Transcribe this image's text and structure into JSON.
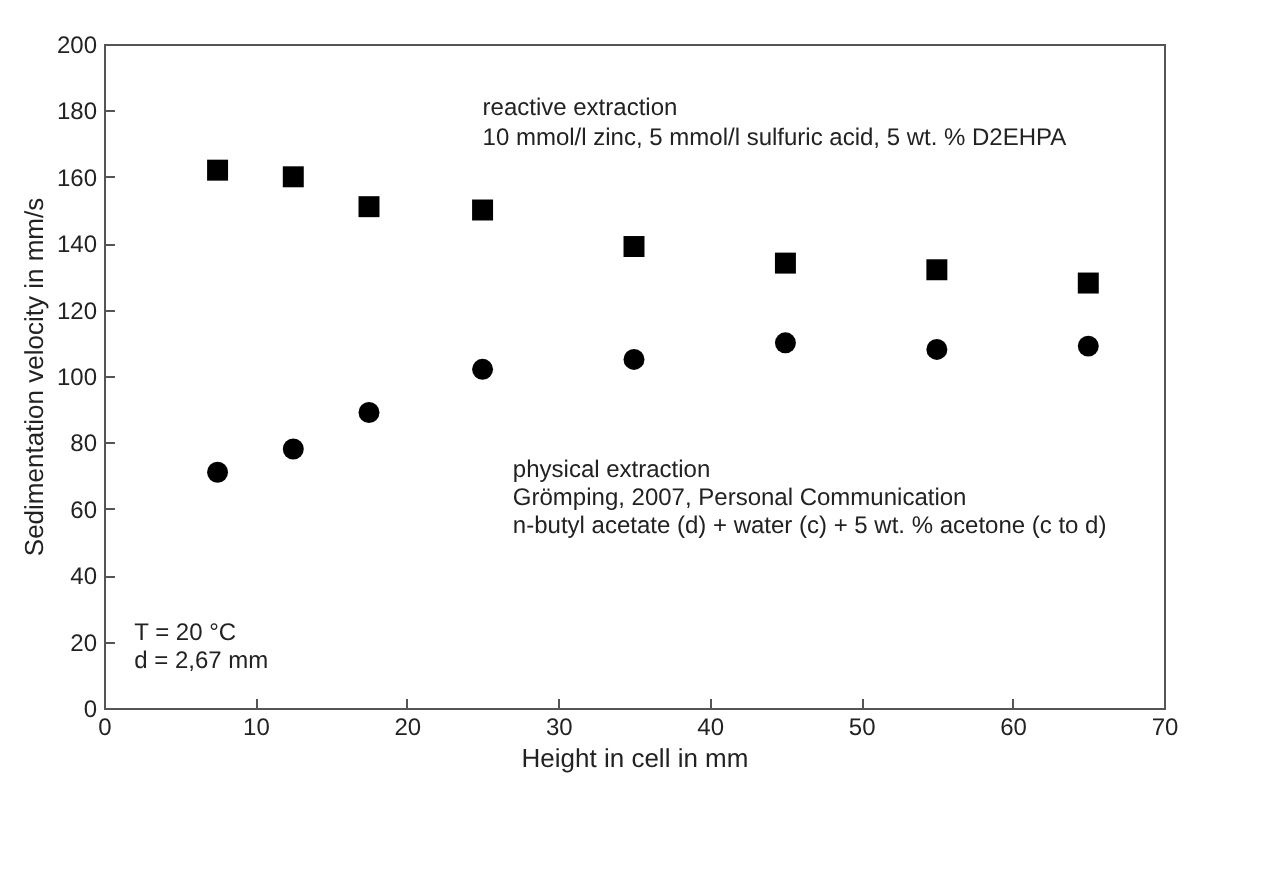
{
  "chart_data": {
    "type": "scatter",
    "xlabel": "Height in cell in mm",
    "ylabel": "Sedimentation velocity in mm/s",
    "x": [
      7.5,
      12.5,
      17.5,
      25,
      35,
      45,
      55,
      65
    ],
    "series": [
      {
        "color": "#000000",
        "marker": "square",
        "values": [
          162,
          160,
          151,
          150,
          139,
          134,
          132,
          128
        ]
      },
      {
        "color": "#000000",
        "marker": "circle",
        "values": [
          71,
          78,
          89,
          102,
          105,
          110,
          108,
          109
        ]
      }
    ],
    "xlim": [
      0,
      70
    ],
    "xticks": [
      0,
      10,
      20,
      30,
      40,
      50,
      60,
      70
    ],
    "ylim": [
      0,
      200
    ],
    "yticks": [
      0,
      20,
      40,
      60,
      80,
      100,
      120,
      140,
      160,
      180,
      200
    ],
    "grid": false,
    "annotations": [
      "reactive extraction",
      "10 mmol/l zinc, 5 mmol/l sulfuric acid, 5 wt. % D2EHPA",
      "physical extraction",
      "Grömping, 2007, Personal Communication",
      "n-butyl acetate (d) + water (c) + 5 wt. % acetone (c to d)",
      "T = 20 °C",
      "d = 2,67 mm"
    ]
  }
}
